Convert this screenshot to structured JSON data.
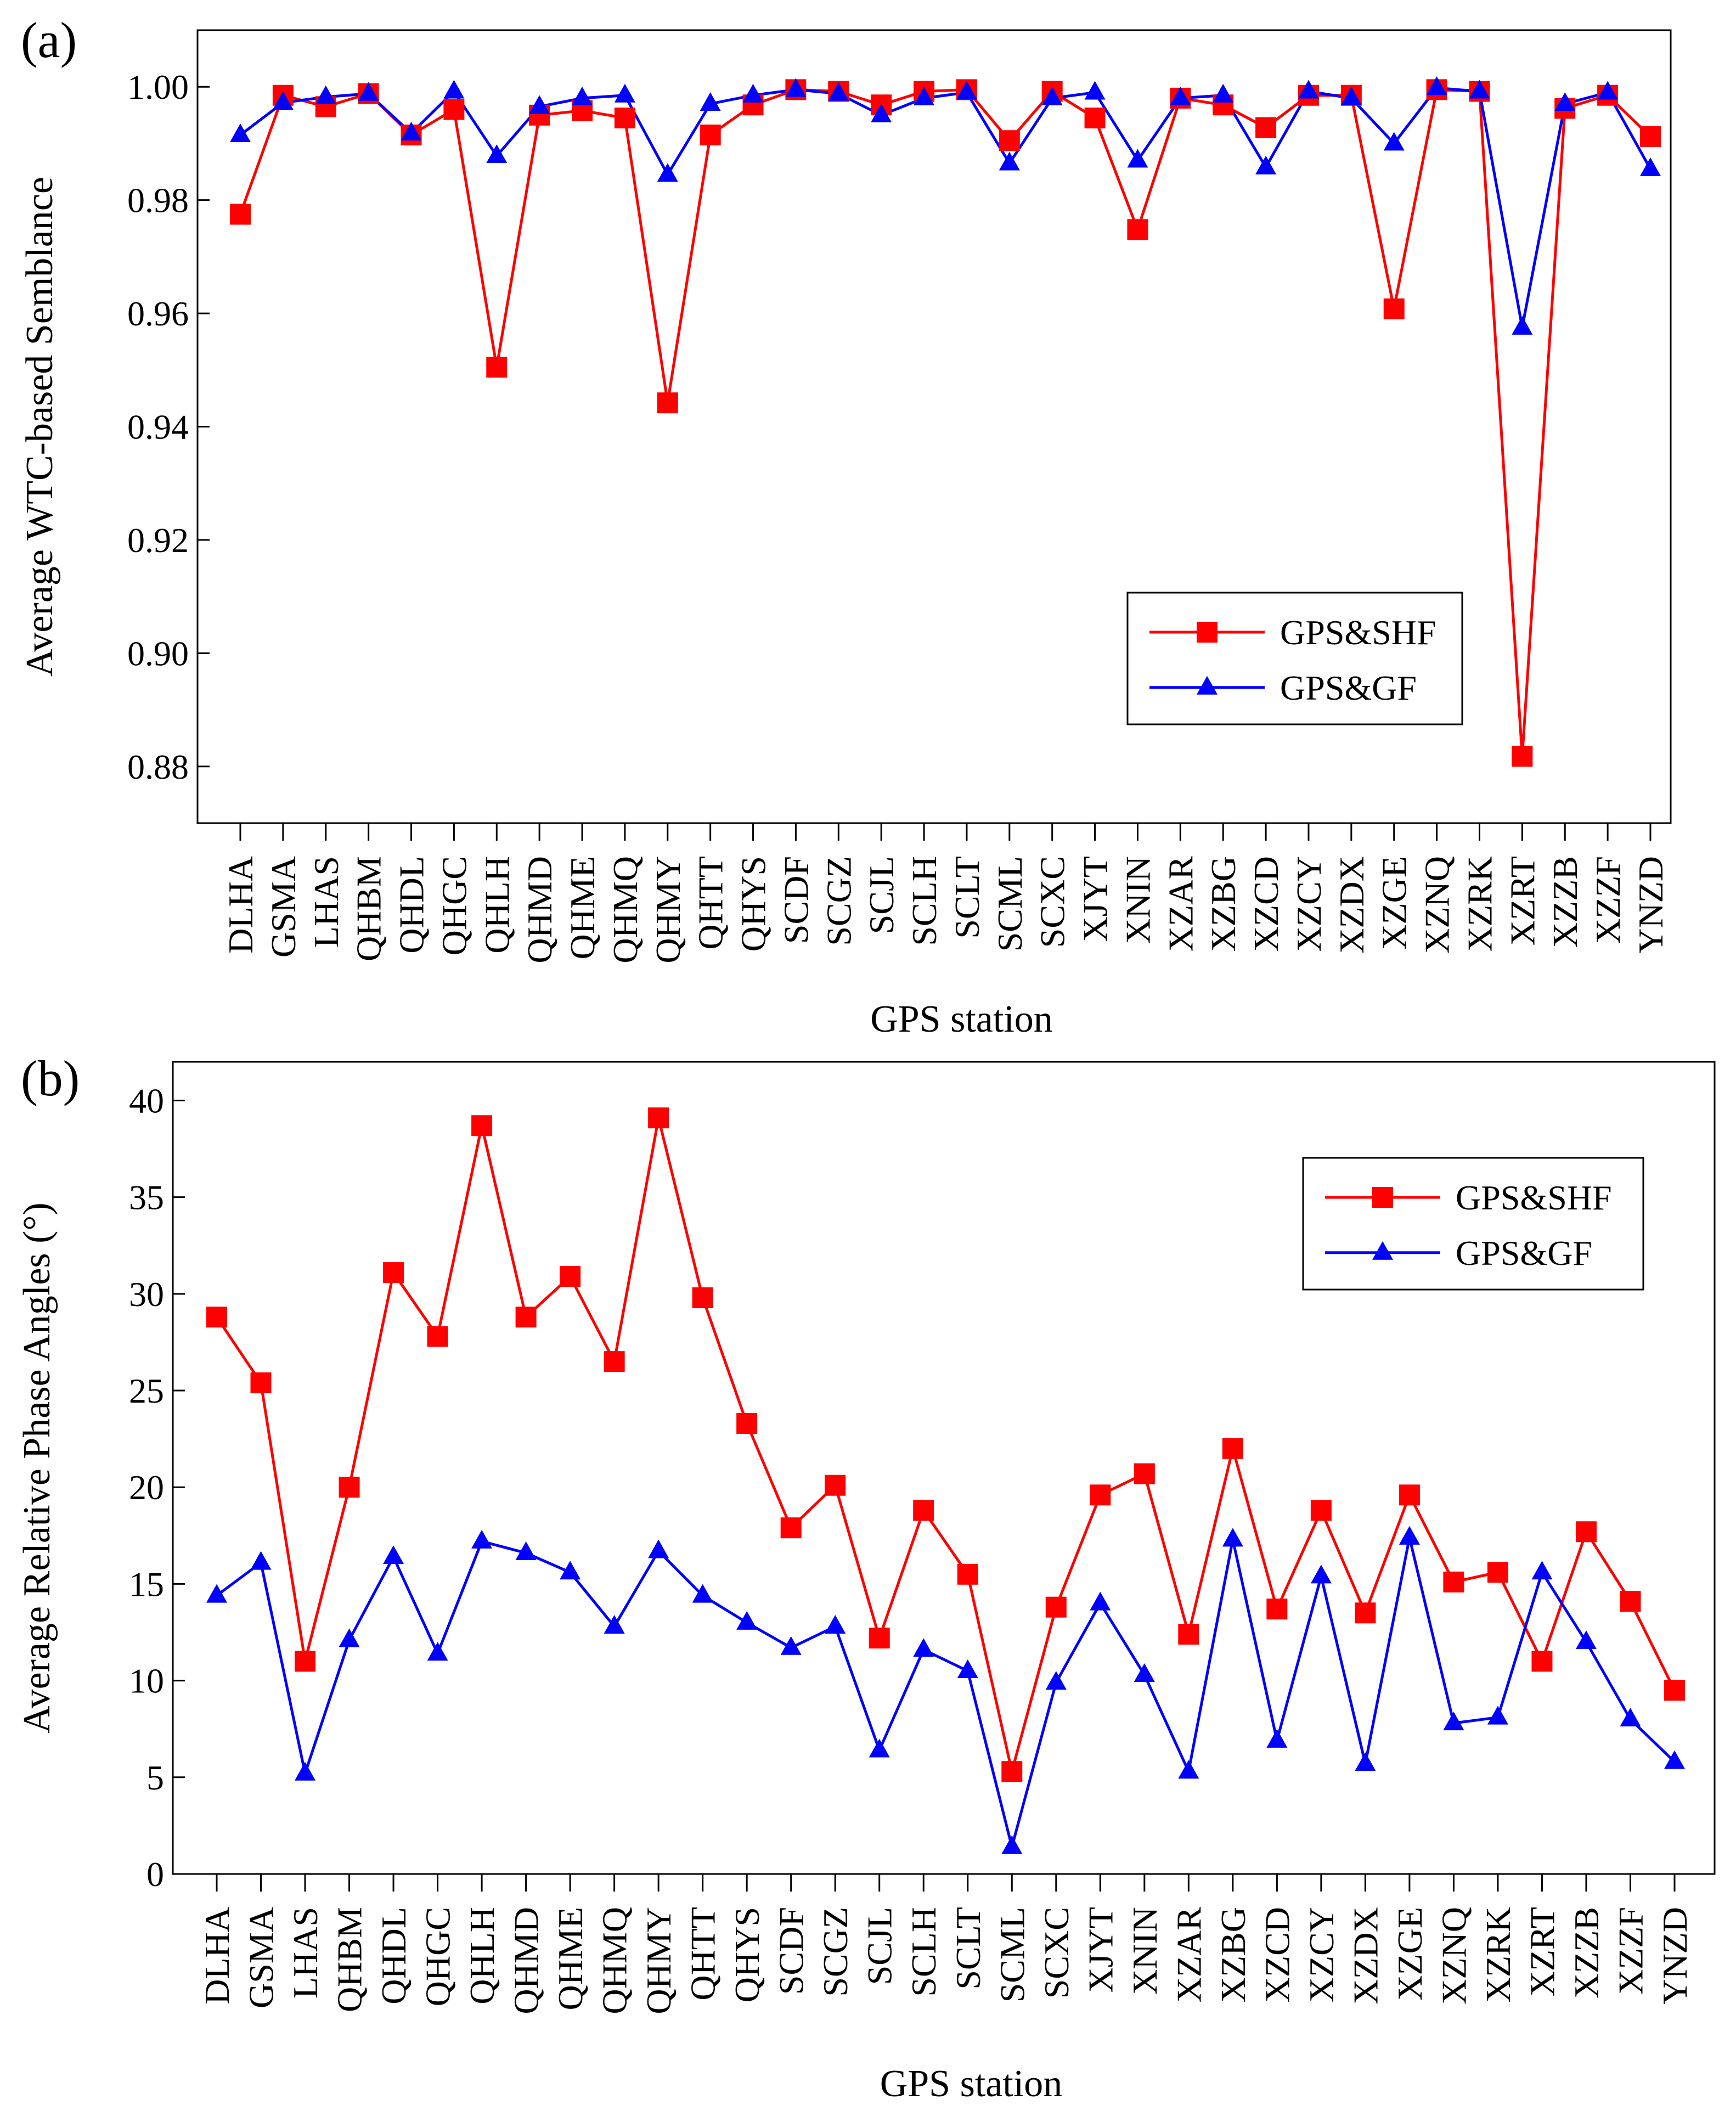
{
  "chart_data": [
    {
      "type": "line",
      "panel_label": "(a)",
      "xlabel": "GPS station",
      "ylabel": "Average WTC-based Semblance",
      "ylim": [
        0.87,
        1.01
      ],
      "yticks": [
        0.88,
        0.9,
        0.92,
        0.94,
        0.96,
        0.98,
        1.0
      ],
      "ytick_labels": [
        "0.88",
        "0.90",
        "0.92",
        "0.94",
        "0.96",
        "0.98",
        "1.00"
      ],
      "legend_position": "center-right",
      "categories": [
        "DLHA",
        "GSMA",
        "LHAS",
        "QHBM",
        "QHDL",
        "QHGC",
        "QHLH",
        "QHMD",
        "QHME",
        "QHMQ",
        "QHMY",
        "QHTT",
        "QHYS",
        "SCDF",
        "SCGZ",
        "SCJL",
        "SCLH",
        "SCLT",
        "SCML",
        "SCXC",
        "XJYT",
        "XNIN",
        "XZAR",
        "XZBG",
        "XZCD",
        "XZCY",
        "XZDX",
        "XZGE",
        "XZNQ",
        "XZRK",
        "XZRT",
        "XZZB",
        "XZZF",
        "YNZD"
      ],
      "series": [
        {
          "name": "GPS&SHF",
          "color": "#ff0000",
          "marker": "square",
          "values": [
            0.9775,
            0.9985,
            0.9965,
            0.9988,
            0.9915,
            0.996,
            0.9505,
            0.995,
            0.9958,
            0.9945,
            0.9442,
            0.9915,
            0.9968,
            0.9995,
            0.9992,
            0.9968,
            0.9992,
            0.9995,
            0.9905,
            0.9992,
            0.9945,
            0.9748,
            0.998,
            0.9968,
            0.9928,
            0.9985,
            0.9985,
            0.9608,
            0.9995,
            0.9992,
            0.8818,
            0.9962,
            0.9985,
            0.9912
          ]
        },
        {
          "name": "GPS&GF",
          "color": "#0000ff",
          "marker": "triangle",
          "values": [
            0.9915,
            0.9972,
            0.9982,
            0.9988,
            0.9918,
            0.9992,
            0.9878,
            0.9965,
            0.998,
            0.9985,
            0.9845,
            0.997,
            0.9985,
            0.9995,
            0.9988,
            0.995,
            0.998,
            0.999,
            0.9865,
            0.998,
            0.999,
            0.987,
            0.998,
            0.9985,
            0.9858,
            0.9992,
            0.998,
            0.99,
            0.9998,
            0.9992,
            0.9575,
            0.997,
            0.999,
            0.9855
          ]
        }
      ]
    },
    {
      "type": "line",
      "panel_label": "(b)",
      "xlabel": "GPS station",
      "ylabel": "Average Relative Phase Angles  (°)",
      "ylim": [
        0,
        42
      ],
      "yticks": [
        0,
        5,
        10,
        15,
        20,
        25,
        30,
        35,
        40
      ],
      "ytick_labels": [
        "0",
        "5",
        "10",
        "15",
        "20",
        "25",
        "30",
        "35",
        "40"
      ],
      "legend_position": "top-right",
      "categories": [
        "DLHA",
        "GSMA",
        "LHAS",
        "QHBM",
        "QHDL",
        "QHGC",
        "QHLH",
        "QHMD",
        "QHME",
        "QHMQ",
        "QHMY",
        "QHTT",
        "QHYS",
        "SCDF",
        "SCGZ",
        "SCJL",
        "SCLH",
        "SCLT",
        "SCML",
        "SCXC",
        "XJYT",
        "XNIN",
        "XZAR",
        "XZBG",
        "XZCD",
        "XZCY",
        "XZDX",
        "XZGE",
        "XZNQ",
        "XZRK",
        "XZRT",
        "XZZB",
        "XZZF",
        "YNZD"
      ],
      "series": [
        {
          "name": "GPS&SHF",
          "color": "#ff0000",
          "marker": "square",
          "values": [
            28.8,
            25.4,
            11.0,
            20.0,
            31.1,
            27.8,
            38.7,
            28.8,
            30.9,
            26.5,
            39.1,
            29.8,
            23.3,
            17.9,
            20.1,
            12.2,
            18.8,
            15.5,
            5.3,
            13.8,
            19.6,
            20.7,
            12.4,
            22.0,
            13.7,
            18.8,
            13.5,
            19.6,
            15.1,
            15.6,
            11.0,
            17.7,
            14.1,
            9.5
          ]
        },
        {
          "name": "GPS&GF",
          "color": "#0000ff",
          "marker": "triangle",
          "values": [
            14.4,
            16.1,
            5.2,
            12.1,
            16.4,
            11.4,
            17.2,
            16.6,
            15.6,
            12.8,
            16.7,
            14.4,
            13.0,
            11.7,
            12.8,
            6.4,
            11.6,
            10.5,
            1.4,
            9.9,
            14.0,
            10.3,
            5.3,
            17.3,
            6.9,
            15.4,
            5.7,
            17.4,
            7.8,
            8.1,
            15.6,
            12.0,
            8.0,
            5.8
          ]
        }
      ]
    }
  ]
}
